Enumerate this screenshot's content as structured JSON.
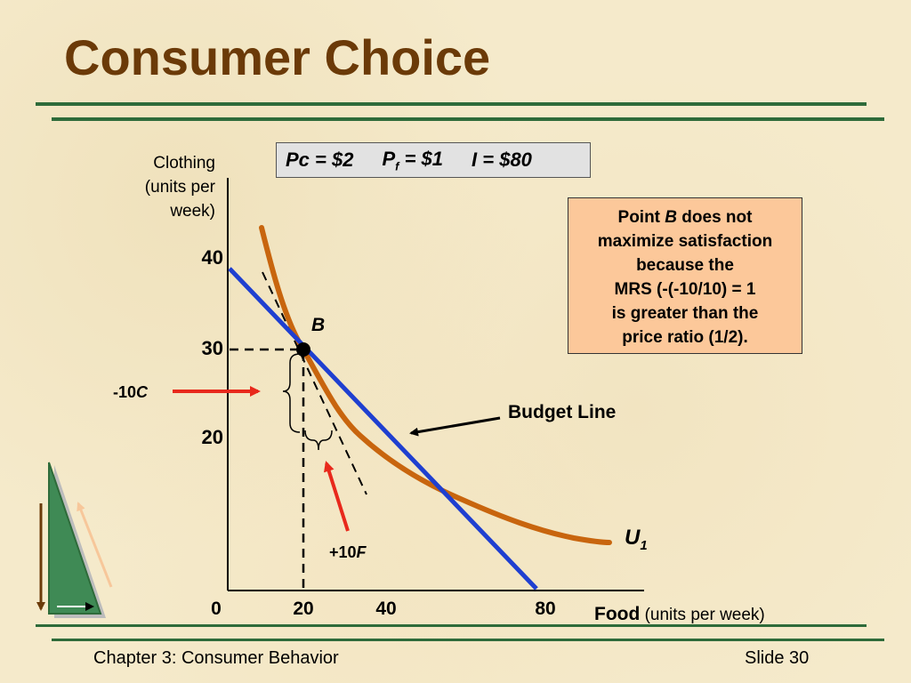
{
  "slide": {
    "title": "Consumer Choice",
    "footer_left": "Chapter 3: Consumer Behavior",
    "footer_right": "Slide 30"
  },
  "prices": {
    "pc": "Pc = $2",
    "pf_main": "P",
    "pf_sub": "f",
    "pf_rest": " = $1",
    "income": "I = $80"
  },
  "note": {
    "line1_a": "Point ",
    "line1_b": "B",
    "line1_c": " does not",
    "line2": "maximize satisfaction",
    "line3": "because the",
    "line4": "MRS (-(-10/10) = 1",
    "line5": "is greater than the",
    "line6": "price ratio (1/2)."
  },
  "axes": {
    "y_label_1": "Clothing",
    "y_label_2": "(units per",
    "y_label_3": "week)",
    "x_label_bold": "Food",
    "x_label_rest": " (units per week)",
    "origin": "0",
    "x_ticks": [
      "20",
      "40",
      "80"
    ],
    "y_ticks": [
      "40",
      "30",
      "20"
    ]
  },
  "labels": {
    "point_b": "B",
    "budget_line": "Budget Line",
    "curve_main": "U",
    "curve_sub": "1",
    "delta_c_num": "-10",
    "delta_c_var": "C",
    "delta_f_num": "+10",
    "delta_f_var": "F"
  },
  "colors": {
    "title": "#6b3a08",
    "budget_line": "#1f3fd0",
    "indifference_curve": "#c8650e",
    "arrow_red": "#e8291c",
    "rule_green": "#2e6b3a",
    "note_fill": "#fcc89a"
  }
}
